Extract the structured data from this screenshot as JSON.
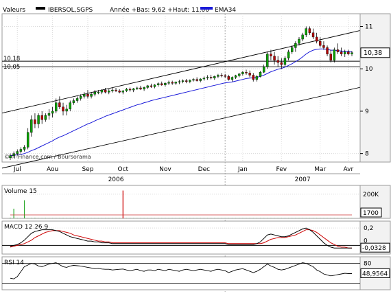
{
  "header": {
    "left_label": "Valeurs",
    "ticker": "IBERSOL,SGPS",
    "stats": "Année +Bas: 9,62 +Haut: 11,00",
    "ema_legend": "EMA34"
  },
  "colors": {
    "background": "#ffffff",
    "grid": "#d9d9d9",
    "up": "#0aa100",
    "down": "#b30000",
    "ema": "#1a1ad9",
    "macd": "#000000",
    "signal": "#cc0000",
    "volume": "#2aa82a",
    "volume_spike": "#cc0000",
    "axis_bg": "#f2f2f2",
    "label_box": "#ffffff"
  },
  "copyright": "© IT-Finance.com / Boursorama",
  "chart_data": [
    {
      "type": "candlestick",
      "name": "price",
      "x_labels": [
        "Jul",
        "Aou",
        "Sep",
        "Oct",
        "Nov",
        "Dec",
        "Jan",
        "Fev",
        "Mar",
        "Avr"
      ],
      "year_labels": [
        "2006",
        "2007"
      ],
      "y_ticks": [
        8,
        9,
        10,
        11
      ],
      "ylim": [
        7.8,
        11.3
      ],
      "price_boxes": [
        "10,38"
      ],
      "left_levels": [
        "10,18",
        "10,05"
      ],
      "trend_lines": [
        {
          "points": [
            [
              0,
              9.0
            ],
            [
              120,
              11.3
            ]
          ]
        },
        {
          "points": [
            [
              0,
              7.7
            ],
            [
              120,
              9.95
            ]
          ]
        },
        {
          "points": [
            [
              0,
              10.18
            ],
            [
              120,
              10.18
            ]
          ]
        },
        {
          "points": [
            [
              0,
              10.05
            ],
            [
              120,
              10.05
            ]
          ]
        }
      ],
      "ohlc": [
        [
          7.9,
          8.0,
          7.85,
          7.95
        ],
        [
          7.95,
          8.05,
          7.9,
          8.0
        ],
        [
          8.0,
          8.1,
          7.95,
          8.05
        ],
        [
          8.05,
          8.15,
          8.0,
          8.1
        ],
        [
          8.1,
          8.2,
          8.05,
          8.15
        ],
        [
          8.15,
          8.6,
          8.1,
          8.5
        ],
        [
          8.5,
          8.9,
          8.4,
          8.8
        ],
        [
          8.8,
          8.95,
          8.6,
          8.7
        ],
        [
          8.7,
          8.95,
          8.6,
          8.9
        ],
        [
          8.9,
          9.0,
          8.7,
          8.8
        ],
        [
          8.8,
          8.95,
          8.75,
          8.9
        ],
        [
          8.9,
          9.05,
          8.8,
          8.95
        ],
        [
          8.95,
          9.1,
          8.85,
          9.0
        ],
        [
          9.0,
          9.3,
          8.95,
          9.2
        ],
        [
          9.2,
          9.35,
          9.05,
          9.1
        ],
        [
          9.1,
          9.2,
          8.9,
          9.0
        ],
        [
          9.0,
          9.15,
          8.9,
          9.05
        ],
        [
          9.05,
          9.25,
          9.0,
          9.2
        ],
        [
          9.2,
          9.3,
          9.15,
          9.25
        ],
        [
          9.25,
          9.35,
          9.2,
          9.3
        ],
        [
          9.3,
          9.4,
          9.25,
          9.35
        ],
        [
          9.35,
          9.45,
          9.3,
          9.4
        ],
        [
          9.4,
          9.5,
          9.3,
          9.35
        ],
        [
          9.35,
          9.45,
          9.3,
          9.4
        ],
        [
          9.4,
          9.5,
          9.35,
          9.45
        ],
        [
          9.45,
          9.5,
          9.4,
          9.45
        ],
        [
          9.45,
          9.52,
          9.4,
          9.5
        ],
        [
          9.5,
          9.55,
          9.42,
          9.45
        ],
        [
          9.45,
          9.52,
          9.4,
          9.48
        ],
        [
          9.48,
          9.55,
          9.44,
          9.5
        ],
        [
          9.5,
          9.55,
          9.45,
          9.48
        ],
        [
          9.48,
          9.52,
          9.42,
          9.45
        ],
        [
          9.45,
          9.5,
          9.4,
          9.48
        ],
        [
          9.48,
          9.55,
          9.45,
          9.52
        ],
        [
          9.52,
          9.56,
          9.46,
          9.5
        ],
        [
          9.5,
          9.55,
          9.45,
          9.53
        ],
        [
          9.53,
          9.58,
          9.5,
          9.55
        ],
        [
          9.55,
          9.6,
          9.5,
          9.52
        ],
        [
          9.52,
          9.58,
          9.48,
          9.56
        ],
        [
          9.56,
          9.62,
          9.52,
          9.6
        ],
        [
          9.6,
          9.65,
          9.55,
          9.58
        ],
        [
          9.58,
          9.64,
          9.54,
          9.62
        ],
        [
          9.62,
          9.68,
          9.58,
          9.65
        ],
        [
          9.65,
          9.7,
          9.6,
          9.62
        ],
        [
          9.62,
          9.68,
          9.58,
          9.66
        ],
        [
          9.66,
          9.72,
          9.62,
          9.68
        ],
        [
          9.68,
          9.72,
          9.62,
          9.66
        ],
        [
          9.66,
          9.7,
          9.62,
          9.69
        ],
        [
          9.69,
          9.74,
          9.64,
          9.7
        ],
        [
          9.7,
          9.75,
          9.66,
          9.72
        ],
        [
          9.72,
          9.76,
          9.66,
          9.7
        ],
        [
          9.7,
          9.75,
          9.66,
          9.73
        ],
        [
          9.73,
          9.78,
          9.7,
          9.75
        ],
        [
          9.75,
          9.8,
          9.7,
          9.72
        ],
        [
          9.72,
          9.78,
          9.68,
          9.76
        ],
        [
          9.76,
          9.82,
          9.72,
          9.78
        ],
        [
          9.78,
          9.85,
          9.74,
          9.8
        ],
        [
          9.8,
          9.86,
          9.75,
          9.78
        ],
        [
          9.78,
          9.84,
          9.74,
          9.82
        ],
        [
          9.82,
          9.88,
          9.78,
          9.85
        ],
        [
          9.85,
          9.9,
          9.8,
          9.84
        ],
        [
          9.84,
          9.88,
          9.78,
          9.82
        ],
        [
          9.82,
          9.86,
          9.72,
          9.75
        ],
        [
          9.75,
          9.82,
          9.7,
          9.8
        ],
        [
          9.8,
          9.86,
          9.76,
          9.84
        ],
        [
          9.84,
          9.9,
          9.8,
          9.88
        ],
        [
          9.88,
          9.95,
          9.84,
          9.92
        ],
        [
          9.92,
          9.98,
          9.86,
          9.9
        ],
        [
          9.9,
          9.96,
          9.8,
          9.85
        ],
        [
          9.85,
          9.9,
          9.7,
          9.75
        ],
        [
          9.75,
          9.85,
          9.7,
          9.82
        ],
        [
          9.82,
          9.95,
          9.8,
          9.92
        ],
        [
          9.92,
          10.1,
          9.9,
          10.05
        ],
        [
          10.05,
          10.4,
          10.0,
          10.35
        ],
        [
          10.35,
          10.45,
          10.2,
          10.3
        ],
        [
          10.3,
          10.4,
          10.1,
          10.2
        ],
        [
          10.2,
          10.3,
          10.05,
          10.15
        ],
        [
          10.15,
          10.25,
          10.0,
          10.1
        ],
        [
          10.1,
          10.3,
          10.05,
          10.25
        ],
        [
          10.25,
          10.45,
          10.2,
          10.4
        ],
        [
          10.4,
          10.55,
          10.35,
          10.5
        ],
        [
          10.5,
          10.65,
          10.4,
          10.6
        ],
        [
          10.6,
          10.75,
          10.55,
          10.7
        ],
        [
          10.7,
          10.85,
          10.65,
          10.8
        ],
        [
          10.8,
          11.0,
          10.75,
          10.95
        ],
        [
          10.95,
          11.0,
          10.8,
          10.85
        ],
        [
          10.85,
          10.95,
          10.7,
          10.75
        ],
        [
          10.75,
          10.85,
          10.6,
          10.65
        ],
        [
          10.65,
          10.75,
          10.5,
          10.55
        ],
        [
          10.55,
          10.65,
          10.45,
          10.5
        ],
        [
          10.5,
          10.55,
          10.3,
          10.35
        ],
        [
          10.35,
          10.45,
          10.15,
          10.2
        ],
        [
          10.2,
          10.5,
          10.15,
          10.45
        ],
        [
          10.45,
          10.6,
          10.35,
          10.4
        ],
        [
          10.4,
          10.5,
          10.3,
          10.35
        ],
        [
          10.35,
          10.45,
          10.28,
          10.4
        ],
        [
          10.4,
          10.45,
          10.32,
          10.35
        ],
        [
          10.35,
          10.42,
          10.3,
          10.38
        ]
      ],
      "ema34": [
        7.95,
        7.96,
        7.97,
        7.98,
        8.0,
        8.03,
        8.07,
        8.1,
        8.14,
        8.18,
        8.22,
        8.26,
        8.3,
        8.35,
        8.39,
        8.42,
        8.46,
        8.5,
        8.54,
        8.58,
        8.62,
        8.66,
        8.7,
        8.73,
        8.77,
        8.81,
        8.84,
        8.88,
        8.91,
        8.94,
        8.97,
        9.0,
        9.03,
        9.06,
        9.09,
        9.12,
        9.15,
        9.17,
        9.2,
        9.22,
        9.25,
        9.27,
        9.29,
        9.31,
        9.33,
        9.35,
        9.37,
        9.39,
        9.41,
        9.43,
        9.45,
        9.47,
        9.49,
        9.51,
        9.53,
        9.55,
        9.57,
        9.59,
        9.61,
        9.63,
        9.65,
        9.67,
        9.68,
        9.69,
        9.71,
        9.73,
        9.75,
        9.77,
        9.78,
        9.79,
        9.8,
        9.82,
        9.85,
        9.89,
        9.93,
        9.96,
        9.99,
        10.01,
        10.04,
        10.08,
        10.12,
        10.17,
        10.22,
        10.28,
        10.35,
        10.4,
        10.44,
        10.46,
        10.47,
        10.47,
        10.46,
        10.44,
        10.44,
        10.43,
        10.42,
        10.41,
        10.41,
        10.4
      ]
    },
    {
      "type": "bar",
      "name": "Volume 15",
      "title": "Volume 15",
      "y_ticks_labels": [
        "200K"
      ],
      "value_box": "1700",
      "ylim": [
        0,
        250000
      ],
      "values": [
        5000,
        80000,
        3000,
        2000,
        150000,
        2000,
        3000,
        4000,
        2000,
        2000,
        3000,
        2000,
        2000,
        2000,
        2000,
        3000,
        2000,
        2000,
        2000,
        2000,
        2000,
        2000,
        2000,
        2000,
        2000,
        2000,
        2000,
        2000,
        2000,
        2000,
        2000,
        2000,
        230000,
        2000,
        2000,
        2000,
        2000,
        2000,
        2000,
        2000,
        2000,
        2000,
        2000,
        2000,
        2000,
        2000,
        2000,
        2000,
        2000,
        2000,
        2000,
        2000,
        2000,
        2000,
        2000,
        2000,
        2000,
        2000,
        2000,
        2000,
        2000,
        2000,
        2000,
        2000,
        2000,
        2000,
        2000,
        2000,
        2000,
        2000,
        2000,
        2000,
        2000,
        2000,
        2000,
        2000,
        2000,
        2000,
        2000,
        2000,
        2000,
        2000,
        2000,
        2000,
        2000,
        2000,
        2000,
        2000,
        2000,
        2000,
        2000,
        2000,
        2000,
        2000,
        2000,
        2000,
        2000,
        1700
      ]
    },
    {
      "type": "line",
      "name": "MACD",
      "title": "MACD 12 26 9",
      "y_ticks": [
        "0,2",
        "0"
      ],
      "value_box": "-0,0328",
      "ylim": [
        -0.1,
        0.28
      ],
      "macd": [
        -0.01,
        0.0,
        0.01,
        0.03,
        0.06,
        0.1,
        0.14,
        0.16,
        0.17,
        0.18,
        0.18,
        0.18,
        0.18,
        0.17,
        0.16,
        0.14,
        0.12,
        0.1,
        0.09,
        0.08,
        0.07,
        0.06,
        0.05,
        0.05,
        0.04,
        0.04,
        0.03,
        0.03,
        0.03,
        0.02,
        0.02,
        0.02,
        0.02,
        0.02,
        0.02,
        0.02,
        0.02,
        0.02,
        0.02,
        0.02,
        0.02,
        0.02,
        0.02,
        0.02,
        0.02,
        0.02,
        0.02,
        0.02,
        0.02,
        0.02,
        0.02,
        0.02,
        0.02,
        0.02,
        0.02,
        0.02,
        0.02,
        0.02,
        0.02,
        0.02,
        0.02,
        0.02,
        0.01,
        0.01,
        0.01,
        0.01,
        0.01,
        0.01,
        0.01,
        0.01,
        0.02,
        0.04,
        0.08,
        0.12,
        0.13,
        0.12,
        0.11,
        0.1,
        0.1,
        0.11,
        0.13,
        0.15,
        0.17,
        0.19,
        0.2,
        0.18,
        0.15,
        0.11,
        0.07,
        0.03,
        0.0,
        -0.02,
        -0.03,
        -0.03,
        -0.03,
        -0.03,
        -0.03,
        -0.03
      ],
      "signal": [
        -0.02,
        -0.01,
        0.0,
        0.01,
        0.02,
        0.04,
        0.06,
        0.09,
        0.11,
        0.13,
        0.15,
        0.16,
        0.17,
        0.17,
        0.17,
        0.16,
        0.15,
        0.14,
        0.12,
        0.11,
        0.1,
        0.09,
        0.08,
        0.07,
        0.06,
        0.05,
        0.05,
        0.04,
        0.04,
        0.03,
        0.03,
        0.03,
        0.03,
        0.03,
        0.03,
        0.03,
        0.03,
        0.03,
        0.03,
        0.03,
        0.03,
        0.03,
        0.03,
        0.03,
        0.03,
        0.03,
        0.03,
        0.03,
        0.03,
        0.03,
        0.03,
        0.03,
        0.03,
        0.03,
        0.03,
        0.03,
        0.03,
        0.03,
        0.03,
        0.03,
        0.03,
        0.03,
        0.02,
        0.02,
        0.02,
        0.02,
        0.02,
        0.02,
        0.02,
        0.02,
        0.02,
        0.02,
        0.03,
        0.05,
        0.07,
        0.08,
        0.09,
        0.09,
        0.09,
        0.1,
        0.11,
        0.12,
        0.14,
        0.16,
        0.18,
        0.18,
        0.17,
        0.15,
        0.12,
        0.09,
        0.06,
        0.03,
        0.01,
        -0.01,
        -0.02,
        -0.02,
        -0.03,
        -0.03
      ]
    },
    {
      "type": "line",
      "name": "RSI",
      "title": "RSI 14",
      "y_ticks": [
        "80"
      ],
      "value_box": "48,9564",
      "ylim": [
        0,
        100
      ],
      "values": [
        35,
        33,
        40,
        55,
        70,
        75,
        80,
        78,
        72,
        70,
        74,
        78,
        80,
        82,
        76,
        70,
        68,
        72,
        74,
        73,
        72,
        70,
        68,
        66,
        64,
        65,
        63,
        62,
        62,
        60,
        61,
        62,
        63,
        60,
        58,
        60,
        62,
        58,
        56,
        60,
        60,
        58,
        62,
        60,
        58,
        62,
        60,
        58,
        56,
        60,
        62,
        60,
        58,
        60,
        62,
        60,
        58,
        56,
        60,
        62,
        60,
        58,
        52,
        56,
        60,
        62,
        64,
        60,
        56,
        52,
        56,
        62,
        70,
        78,
        72,
        68,
        62,
        60,
        62,
        66,
        70,
        74,
        78,
        82,
        80,
        75,
        70,
        60,
        55,
        48,
        45,
        42,
        44,
        46,
        48,
        50,
        49,
        49
      ]
    }
  ]
}
